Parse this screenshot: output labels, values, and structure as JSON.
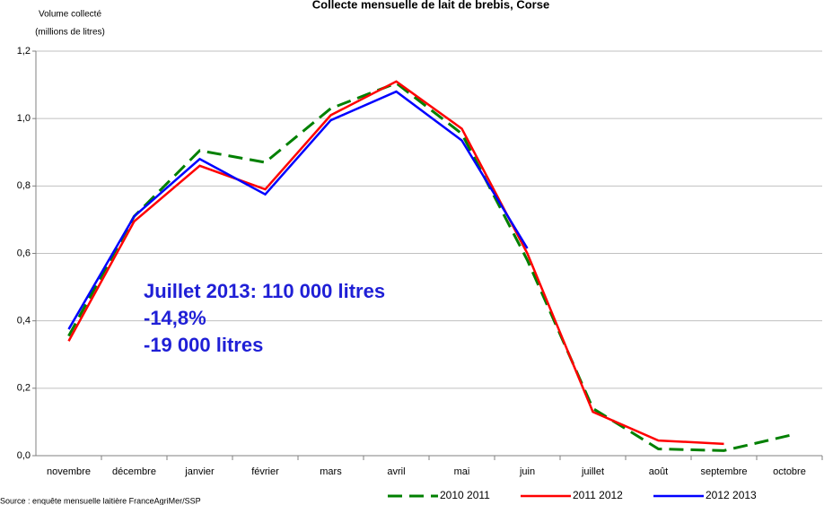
{
  "chart_data": {
    "type": "line",
    "title": "Collecte mensuelle de lait de brebis, Corse",
    "y_label": [
      "Volume collecté",
      "(millions de litres)"
    ],
    "annotation": [
      "Juillet 2013: 110 000 litres",
      "-14,8%",
      "-19 000 litres"
    ],
    "source": "Source : enquête mensuelle laitière FranceAgriMer/SSP",
    "categories": [
      "novembre",
      "décembre",
      "janvier",
      "février",
      "mars",
      "avril",
      "mai",
      "juin",
      "juillet",
      "août",
      "septembre",
      "octobre"
    ],
    "series": [
      {
        "name": "2010 2011",
        "color": "#008000",
        "dashed": true,
        "values": [
          0.355,
          0.71,
          0.905,
          0.87,
          1.03,
          1.105,
          0.955,
          0.58,
          0.14,
          0.02,
          0.015,
          0.06
        ]
      },
      {
        "name": "2011 2012",
        "color": "#ff0000",
        "values": [
          0.34,
          0.695,
          0.86,
          0.79,
          1.01,
          1.11,
          0.97,
          0.6,
          0.13,
          0.045,
          0.035,
          null
        ]
      },
      {
        "name": "2012 2013",
        "color": "#0000ff",
        "values": [
          0.375,
          0.71,
          0.88,
          0.775,
          0.995,
          1.08,
          0.935,
          0.615,
          null,
          null,
          null,
          null
        ]
      }
    ],
    "ylim": [
      0,
      1.2
    ],
    "yticks": [
      {
        "value": 0,
        "label": "0,0"
      },
      {
        "value": 0.2,
        "label": "0,2"
      },
      {
        "value": 0.4,
        "label": "0,4"
      },
      {
        "value": 0.6,
        "label": "0,6"
      },
      {
        "value": 0.8,
        "label": "0,8"
      },
      {
        "value": 1.0,
        "label": "1,0"
      },
      {
        "value": 1.2,
        "label": "1,2"
      }
    ],
    "grid": true
  }
}
